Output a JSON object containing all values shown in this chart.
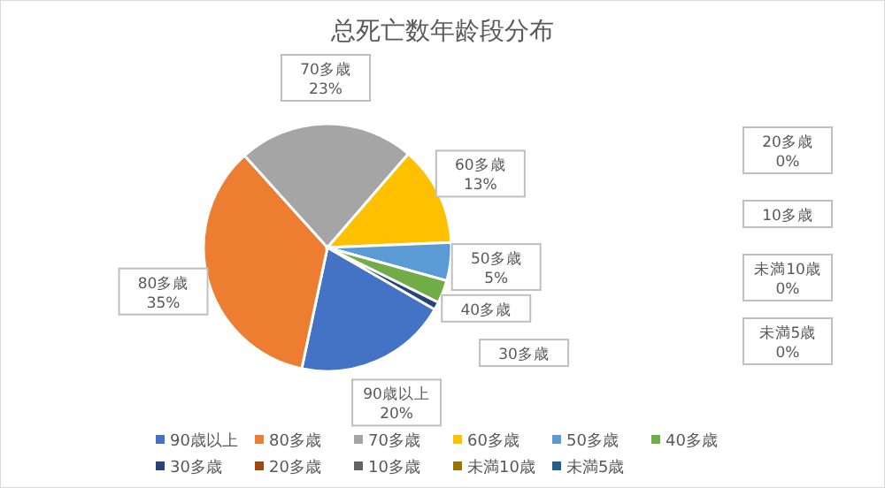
{
  "chart_data": {
    "type": "pie",
    "title": "总死亡数年龄段分布",
    "categories": [
      "90歳以上",
      "80多歳",
      "70多歳",
      "60多歳",
      "50多歳",
      "40多歳",
      "30多歳",
      "20多歳",
      "10多歳",
      "未満10歳",
      "未満5歳"
    ],
    "values": [
      20,
      35,
      23,
      13,
      5,
      3,
      1,
      0,
      0,
      0,
      0
    ],
    "value_labels": [
      "20%",
      "35%",
      "23%",
      "13%",
      "5%",
      null,
      null,
      "0%",
      null,
      "0%",
      "0%"
    ],
    "colors": [
      "#4472c4",
      "#ed7d31",
      "#a5a5a5",
      "#ffc000",
      "#5b9bd5",
      "#70ad47",
      "#264478",
      "#9e480e",
      "#636363",
      "#997300",
      "#255e91"
    ],
    "legend": "bottom"
  }
}
